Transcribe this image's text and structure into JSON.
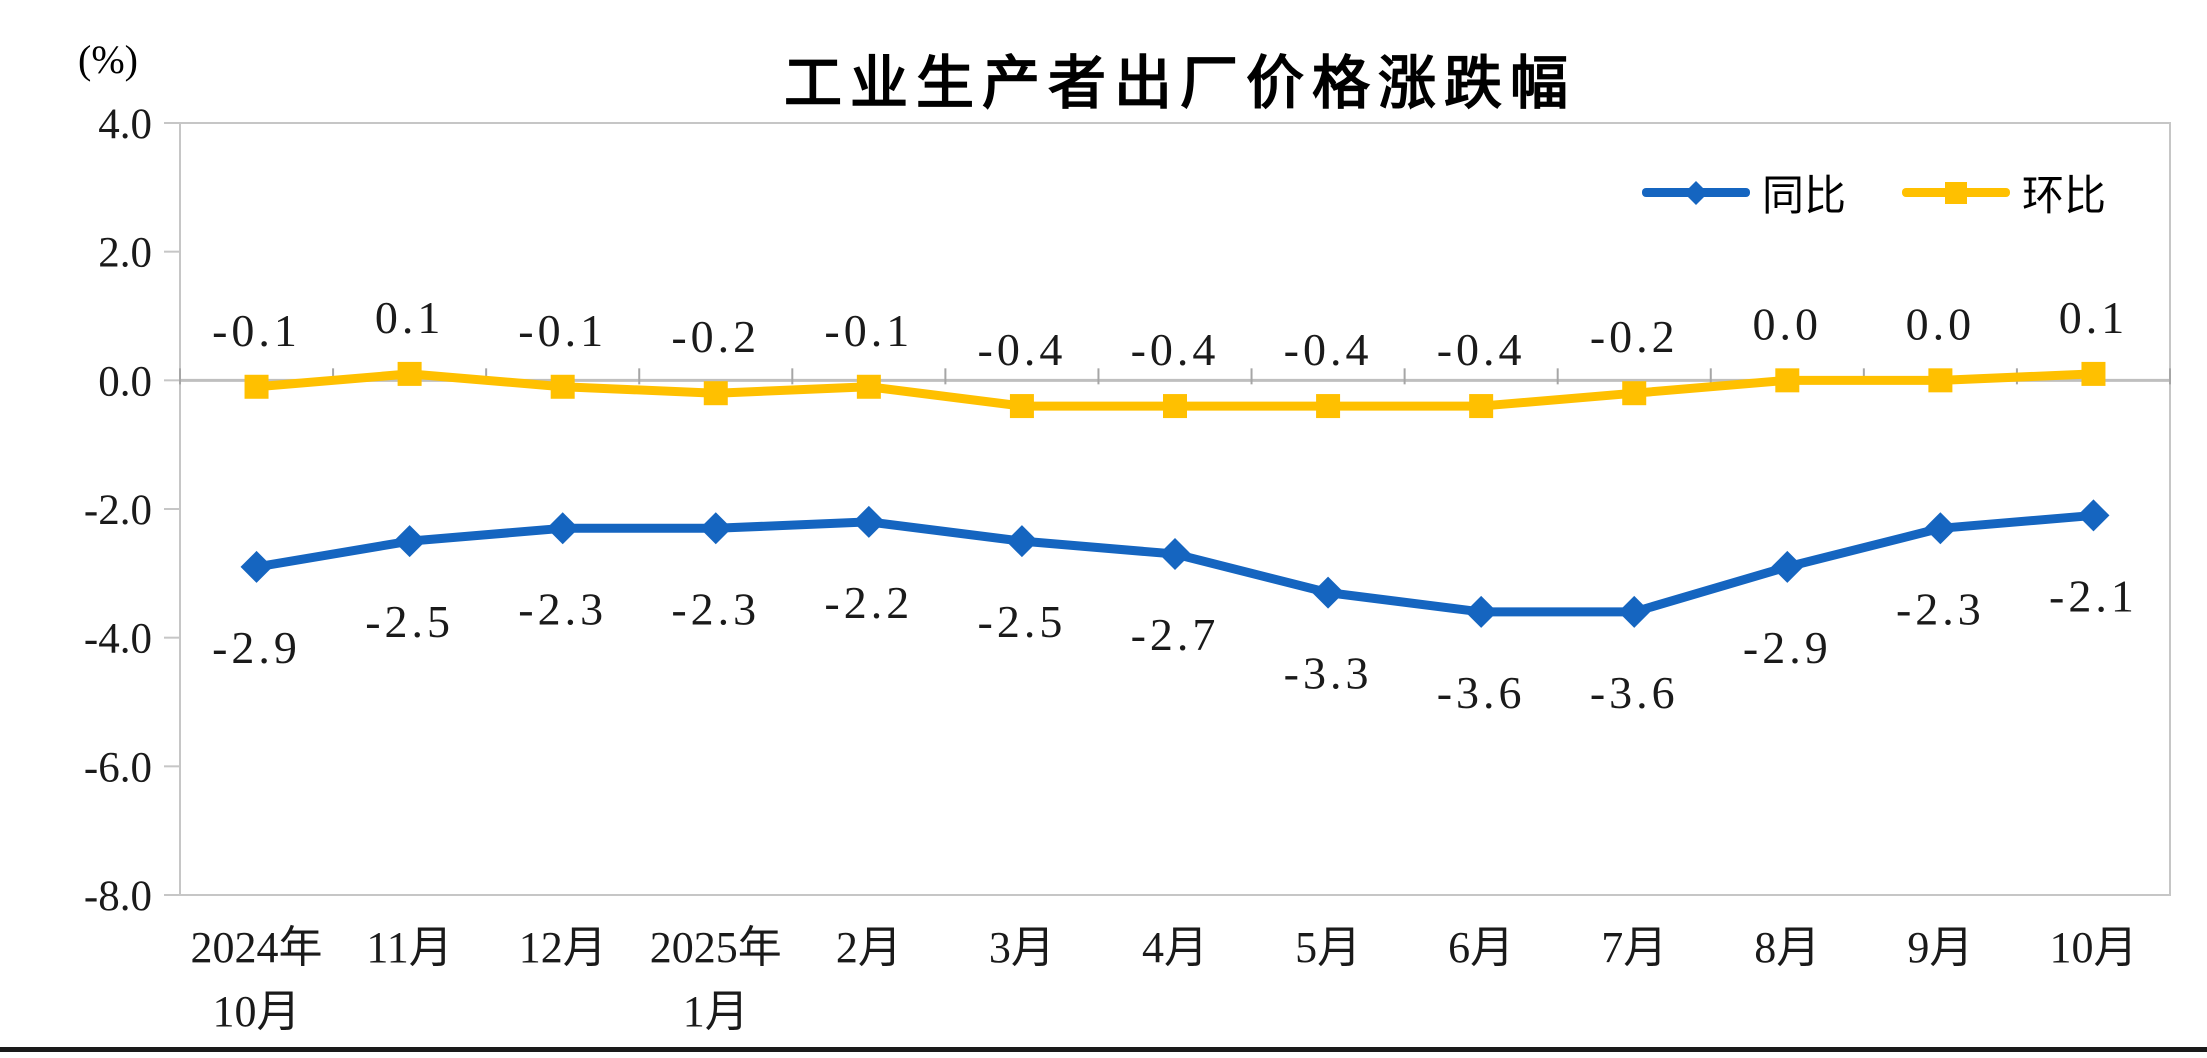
{
  "title": "工业生产者出厂价格涨跌幅",
  "unit_label": "(%)",
  "colors": {
    "yoy_blue": "#1565C0",
    "mom_yellow": "#FFC000",
    "axis_gray": "#C6C6C6",
    "zero_line_gray": "#BFBFBF",
    "tick_gray": "#A6A6A6",
    "text_black": "#1A1A1A",
    "bottom_bar": "#1A1A1A"
  },
  "chart_data": {
    "type": "line",
    "title": "工业生产者出厂价格涨跌幅",
    "unit": "%",
    "categories": [
      [
        "2024年",
        "10月"
      ],
      [
        "11月"
      ],
      [
        "12月"
      ],
      [
        "2025年",
        "1月"
      ],
      [
        "2月"
      ],
      [
        "3月"
      ],
      [
        "4月"
      ],
      [
        "5月"
      ],
      [
        "6月"
      ],
      [
        "7月"
      ],
      [
        "8月"
      ],
      [
        "9月"
      ],
      [
        "10月"
      ]
    ],
    "series": [
      {
        "name": "同比",
        "marker": "diamond",
        "color": "#1565C0",
        "values": [
          -2.9,
          -2.5,
          -2.3,
          -2.3,
          -2.2,
          -2.5,
          -2.7,
          -3.3,
          -3.6,
          -3.6,
          -2.9,
          -2.3,
          -2.1
        ],
        "labels": [
          "-2.9",
          "-2.5",
          "-2.3",
          "-2.3",
          "-2.2",
          "-2.5",
          "-2.7",
          "-3.3",
          "-3.6",
          "-3.6",
          "-2.9",
          "-2.3",
          "-2.1"
        ]
      },
      {
        "name": "环比",
        "marker": "square",
        "color": "#FFC000",
        "values": [
          -0.1,
          0.1,
          -0.1,
          -0.2,
          -0.1,
          -0.4,
          -0.4,
          -0.4,
          -0.4,
          -0.2,
          0.0,
          0.0,
          0.1
        ],
        "labels": [
          "-0.1",
          "0.1",
          "-0.1",
          "-0.2",
          "-0.1",
          "-0.4",
          "-0.4",
          "-0.4",
          "-0.4",
          "-0.2",
          "0.0",
          "0.0",
          "0.1"
        ]
      }
    ],
    "ylim": [
      -8.0,
      4.0
    ],
    "yticks": [
      "4.0",
      "2.0",
      "0.0",
      "-2.0",
      "-4.0",
      "-6.0",
      "-8.0"
    ],
    "grid": false,
    "legend_position": "top-right"
  }
}
